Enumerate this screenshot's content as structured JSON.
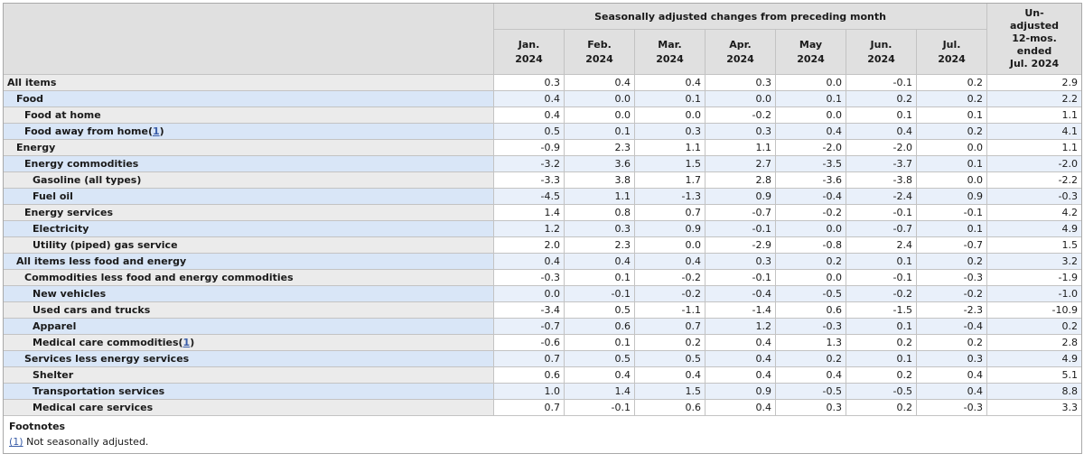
{
  "chart_data": {
    "type": "table",
    "title": "Seasonally adjusted changes from preceding month",
    "header": {
      "group_title": "Seasonally adjusted changes from preceding month",
      "month_columns": [
        "Jan.\n2024",
        "Feb.\n2024",
        "Mar.\n2024",
        "Apr.\n2024",
        "May\n2024",
        "Jun.\n2024",
        "Jul.\n2024"
      ],
      "unadjusted_column": "Un-\nadjusted\n12-mos.\nended\nJul. 2024"
    },
    "rows": [
      {
        "label": "All items",
        "indent": 0,
        "footnote": "",
        "values": [
          "0.3",
          "0.4",
          "0.4",
          "0.3",
          "0.0",
          "-0.1",
          "0.2",
          "2.9"
        ]
      },
      {
        "label": "Food",
        "indent": 1,
        "footnote": "",
        "values": [
          "0.4",
          "0.0",
          "0.1",
          "0.0",
          "0.1",
          "0.2",
          "0.2",
          "2.2"
        ]
      },
      {
        "label": "Food at home",
        "indent": 2,
        "footnote": "",
        "values": [
          "0.4",
          "0.0",
          "0.0",
          "-0.2",
          "0.0",
          "0.1",
          "0.1",
          "1.1"
        ]
      },
      {
        "label": "Food away from home",
        "indent": 2,
        "footnote": "1",
        "values": [
          "0.5",
          "0.1",
          "0.3",
          "0.3",
          "0.4",
          "0.4",
          "0.2",
          "4.1"
        ]
      },
      {
        "label": "Energy",
        "indent": 1,
        "footnote": "",
        "values": [
          "-0.9",
          "2.3",
          "1.1",
          "1.1",
          "-2.0",
          "-2.0",
          "0.0",
          "1.1"
        ]
      },
      {
        "label": "Energy commodities",
        "indent": 2,
        "footnote": "",
        "values": [
          "-3.2",
          "3.6",
          "1.5",
          "2.7",
          "-3.5",
          "-3.7",
          "0.1",
          "-2.0"
        ]
      },
      {
        "label": "Gasoline (all types)",
        "indent": 3,
        "footnote": "",
        "values": [
          "-3.3",
          "3.8",
          "1.7",
          "2.8",
          "-3.6",
          "-3.8",
          "0.0",
          "-2.2"
        ]
      },
      {
        "label": "Fuel oil",
        "indent": 3,
        "footnote": "",
        "values": [
          "-4.5",
          "1.1",
          "-1.3",
          "0.9",
          "-0.4",
          "-2.4",
          "0.9",
          "-0.3"
        ]
      },
      {
        "label": "Energy services",
        "indent": 2,
        "footnote": "",
        "values": [
          "1.4",
          "0.8",
          "0.7",
          "-0.7",
          "-0.2",
          "-0.1",
          "-0.1",
          "4.2"
        ]
      },
      {
        "label": "Electricity",
        "indent": 3,
        "footnote": "",
        "values": [
          "1.2",
          "0.3",
          "0.9",
          "-0.1",
          "0.0",
          "-0.7",
          "0.1",
          "4.9"
        ]
      },
      {
        "label": "Utility (piped) gas service",
        "indent": 3,
        "footnote": "",
        "values": [
          "2.0",
          "2.3",
          "0.0",
          "-2.9",
          "-0.8",
          "2.4",
          "-0.7",
          "1.5"
        ]
      },
      {
        "label": "All items less food and energy",
        "indent": 1,
        "footnote": "",
        "values": [
          "0.4",
          "0.4",
          "0.4",
          "0.3",
          "0.2",
          "0.1",
          "0.2",
          "3.2"
        ]
      },
      {
        "label": "Commodities less food and energy commodities",
        "indent": 2,
        "footnote": "",
        "values": [
          "-0.3",
          "0.1",
          "-0.2",
          "-0.1",
          "0.0",
          "-0.1",
          "-0.3",
          "-1.9"
        ]
      },
      {
        "label": "New vehicles",
        "indent": 3,
        "footnote": "",
        "values": [
          "0.0",
          "-0.1",
          "-0.2",
          "-0.4",
          "-0.5",
          "-0.2",
          "-0.2",
          "-1.0"
        ]
      },
      {
        "label": "Used cars and trucks",
        "indent": 3,
        "footnote": "",
        "values": [
          "-3.4",
          "0.5",
          "-1.1",
          "-1.4",
          "0.6",
          "-1.5",
          "-2.3",
          "-10.9"
        ]
      },
      {
        "label": "Apparel",
        "indent": 3,
        "footnote": "",
        "values": [
          "-0.7",
          "0.6",
          "0.7",
          "1.2",
          "-0.3",
          "0.1",
          "-0.4",
          "0.2"
        ]
      },
      {
        "label": "Medical care commodities",
        "indent": 3,
        "footnote": "1",
        "values": [
          "-0.6",
          "0.1",
          "0.2",
          "0.4",
          "1.3",
          "0.2",
          "0.2",
          "2.8"
        ]
      },
      {
        "label": "Services less energy services",
        "indent": 2,
        "footnote": "",
        "values": [
          "0.7",
          "0.5",
          "0.5",
          "0.4",
          "0.2",
          "0.1",
          "0.3",
          "4.9"
        ]
      },
      {
        "label": "Shelter",
        "indent": 3,
        "footnote": "",
        "values": [
          "0.6",
          "0.4",
          "0.4",
          "0.4",
          "0.4",
          "0.2",
          "0.4",
          "5.1"
        ]
      },
      {
        "label": "Transportation services",
        "indent": 3,
        "footnote": "",
        "values": [
          "1.0",
          "1.4",
          "1.5",
          "0.9",
          "-0.5",
          "-0.5",
          "0.4",
          "8.8"
        ]
      },
      {
        "label": "Medical care services",
        "indent": 3,
        "footnote": "",
        "values": [
          "0.7",
          "-0.1",
          "0.6",
          "0.4",
          "0.3",
          "0.2",
          "-0.3",
          "3.3"
        ]
      }
    ]
  },
  "footnotes": {
    "title": "Footnotes",
    "items": [
      {
        "marker": "(1)",
        "text": "Not seasonally adjusted."
      }
    ]
  },
  "colors": {
    "header_bg": "#e0e0e0",
    "stub_row_gray": "#ebebeb",
    "stub_row_blue": "#d9e6f7",
    "data_row_white": "#ffffff",
    "data_row_blue": "#e9f0fa",
    "border": "#c3c3c3",
    "link": "#3a5da8"
  }
}
